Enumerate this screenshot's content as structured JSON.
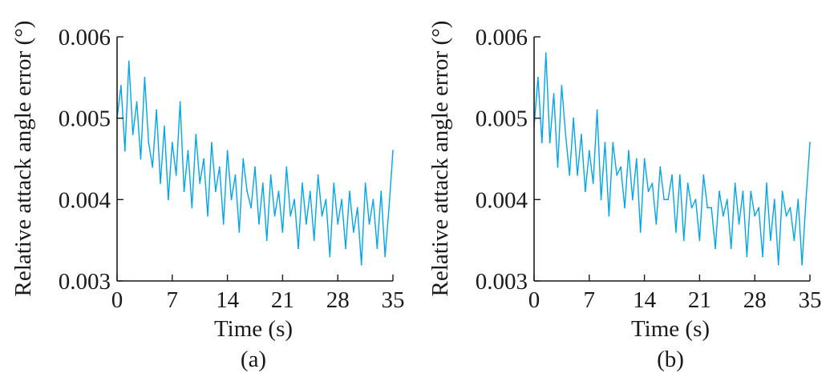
{
  "chart_data": [
    {
      "type": "line",
      "caption": "(a)",
      "xlabel": "Time (s)",
      "ylabel": "Relative attack angle error (°)",
      "xlim": [
        0,
        35
      ],
      "ylim": [
        0.003,
        0.006
      ],
      "xticks": [
        "0",
        "7",
        "14",
        "21",
        "28",
        "35"
      ],
      "yticks": [
        "0.003",
        "0.004",
        "0.005",
        "0.006"
      ],
      "series": [
        {
          "color": "#00a6e8",
          "x": [
            0,
            0.5,
            1,
            1.5,
            2,
            2.5,
            3,
            3.5,
            4,
            4.5,
            5,
            5.5,
            6,
            6.5,
            7,
            7.5,
            8,
            8.5,
            9,
            9.5,
            10,
            10.5,
            11,
            11.5,
            12,
            12.5,
            13,
            13.5,
            14,
            14.5,
            15,
            15.5,
            16,
            16.5,
            17,
            17.5,
            18,
            18.5,
            19,
            19.5,
            20,
            20.5,
            21,
            21.5,
            22,
            22.5,
            23,
            23.5,
            24,
            24.5,
            25,
            25.5,
            26,
            26.5,
            27,
            27.5,
            28,
            28.5,
            29,
            29.5,
            30,
            30.5,
            31,
            31.5,
            32,
            32.5,
            33,
            33.5,
            34,
            34.5,
            35
          ],
          "y": [
            0.005,
            0.0054,
            0.0046,
            0.0057,
            0.0048,
            0.0052,
            0.0045,
            0.0055,
            0.0047,
            0.0044,
            0.0051,
            0.0042,
            0.0049,
            0.004,
            0.0047,
            0.0043,
            0.0052,
            0.0041,
            0.0046,
            0.0039,
            0.0048,
            0.0042,
            0.0045,
            0.0038,
            0.0047,
            0.0041,
            0.0044,
            0.0037,
            0.0046,
            0.004,
            0.0043,
            0.0036,
            0.0045,
            0.0041,
            0.0039,
            0.0044,
            0.0037,
            0.0042,
            0.0035,
            0.0043,
            0.0038,
            0.0041,
            0.0036,
            0.0044,
            0.0038,
            0.004,
            0.0034,
            0.0042,
            0.0037,
            0.0041,
            0.0035,
            0.0043,
            0.0038,
            0.004,
            0.0033,
            0.0042,
            0.0037,
            0.004,
            0.0034,
            0.0041,
            0.0036,
            0.0039,
            0.0032,
            0.0042,
            0.0037,
            0.004,
            0.0034,
            0.0041,
            0.0033,
            0.0039,
            0.0046
          ]
        }
      ]
    },
    {
      "type": "line",
      "caption": "(b)",
      "xlabel": "Time (s)",
      "ylabel": "Relative attack angle error (°)",
      "xlim": [
        0,
        35
      ],
      "ylim": [
        0.003,
        0.006
      ],
      "xticks": [
        "0",
        "7",
        "14",
        "21",
        "28",
        "35"
      ],
      "yticks": [
        "0.003",
        "0.004",
        "0.005",
        "0.006"
      ],
      "series": [
        {
          "color": "#00a6e8",
          "x": [
            0,
            0.5,
            1,
            1.5,
            2,
            2.5,
            3,
            3.5,
            4,
            4.5,
            5,
            5.5,
            6,
            6.5,
            7,
            7.5,
            8,
            8.5,
            9,
            9.5,
            10,
            10.5,
            11,
            11.5,
            12,
            12.5,
            13,
            13.5,
            14,
            14.5,
            15,
            15.5,
            16,
            16.5,
            17,
            17.5,
            18,
            18.5,
            19,
            19.5,
            20,
            20.5,
            21,
            21.5,
            22,
            22.5,
            23,
            23.5,
            24,
            24.5,
            25,
            25.5,
            26,
            26.5,
            27,
            27.5,
            28,
            28.5,
            29,
            29.5,
            30,
            30.5,
            31,
            31.5,
            32,
            32.5,
            33,
            33.5,
            34,
            34.5,
            35
          ],
          "y": [
            0.0049,
            0.0055,
            0.0047,
            0.0058,
            0.0047,
            0.0053,
            0.0044,
            0.0054,
            0.0048,
            0.0043,
            0.005,
            0.0043,
            0.0048,
            0.0041,
            0.0046,
            0.0042,
            0.0051,
            0.004,
            0.0047,
            0.0038,
            0.0047,
            0.0043,
            0.0044,
            0.0039,
            0.0046,
            0.004,
            0.0045,
            0.0036,
            0.0045,
            0.0041,
            0.0042,
            0.0037,
            0.0044,
            0.004,
            0.004,
            0.0043,
            0.0036,
            0.0043,
            0.0035,
            0.0042,
            0.0039,
            0.004,
            0.0035,
            0.0043,
            0.0039,
            0.0039,
            0.0034,
            0.0041,
            0.0038,
            0.004,
            0.0034,
            0.0042,
            0.0037,
            0.0041,
            0.0033,
            0.0041,
            0.0038,
            0.0039,
            0.0033,
            0.0042,
            0.0035,
            0.004,
            0.0032,
            0.0041,
            0.0038,
            0.0039,
            0.0035,
            0.004,
            0.0032,
            0.004,
            0.0047
          ]
        }
      ]
    }
  ]
}
